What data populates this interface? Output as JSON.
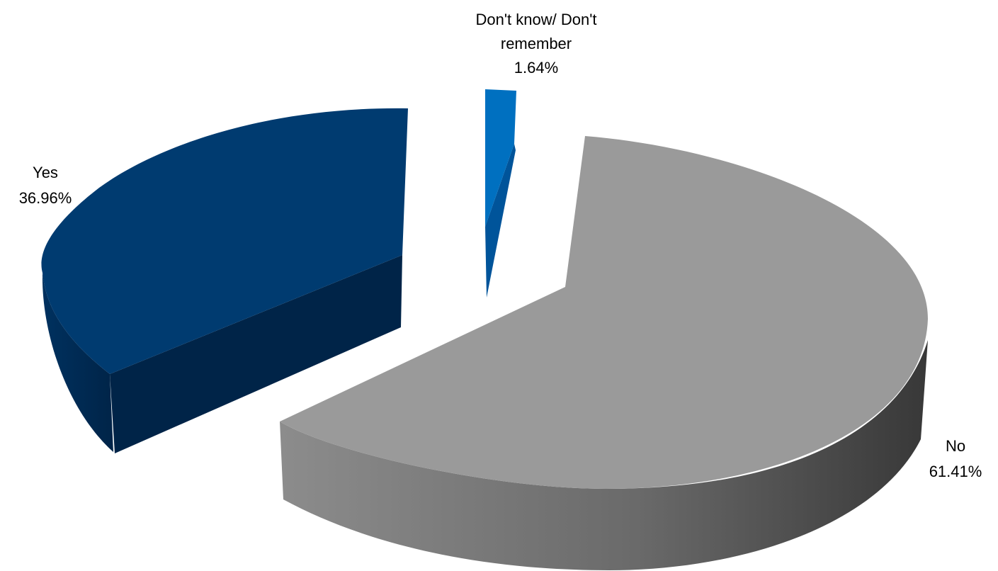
{
  "chart_data": {
    "type": "pie",
    "title": "",
    "slices": [
      {
        "label": "Yes",
        "value": 36.96,
        "value_label": "36.96%",
        "color": "#003b70",
        "side_color": "#002448"
      },
      {
        "label": "Don't know/ Don't remember",
        "value": 1.64,
        "value_label": "1.64%",
        "color": "#0070c0",
        "side_color": "#005a9c"
      },
      {
        "label": "No",
        "value": 61.41,
        "value_label": "61.41%",
        "color": "#9a9a9a",
        "side_color": "#5a5a5a"
      }
    ],
    "exploded": true,
    "three_d": true,
    "legend": "none",
    "data_labels": "outside"
  }
}
